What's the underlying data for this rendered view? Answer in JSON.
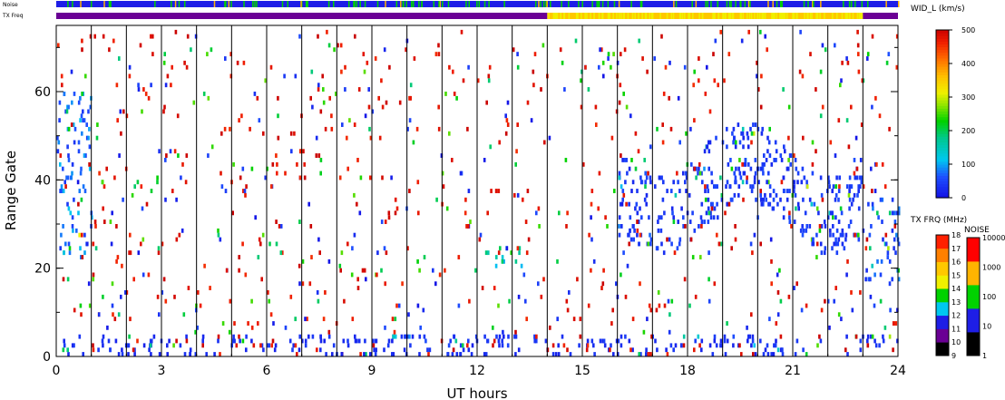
{
  "strip_labels": {
    "noise": "Noise",
    "tx_freq": "TX Freq"
  },
  "colorbars": {
    "width": {
      "title": "WID_L (km/s)",
      "ticks": [
        "0",
        "100",
        "200",
        "300",
        "400",
        "500"
      ]
    },
    "tx_freq": {
      "title": "TX FRQ (MHz)",
      "ticks": [
        "9",
        "10",
        "11",
        "12",
        "13",
        "14",
        "15",
        "16",
        "17",
        "18"
      ],
      "colors": [
        "#000000",
        "#6a0094",
        "#1e1ee6",
        "#00c8f0",
        "#00d200",
        "#f0f000",
        "#ffc800",
        "#ff8000",
        "#ff2000",
        "#e60000"
      ]
    },
    "noise": {
      "title": "NOISE",
      "ticks": [
        "1",
        "10",
        "100",
        "1000",
        "10000"
      ],
      "colors": [
        "#000000",
        "#1e1ee6",
        "#00d200",
        "#ffb400",
        "#ff0000"
      ]
    }
  },
  "chart_data": {
    "type": "heatmap",
    "xlabel": "UT hours",
    "ylabel": "Range Gate",
    "xlim": [
      0,
      24
    ],
    "ylim": [
      0,
      75
    ],
    "x_ticks": [
      "0",
      "3",
      "6",
      "9",
      "12",
      "15",
      "18",
      "21",
      "24"
    ],
    "y_ticks": [
      "0",
      "20",
      "40",
      "60"
    ],
    "scan_boundaries_ut": [
      1,
      2,
      3,
      4,
      5,
      6,
      7,
      8,
      9,
      10,
      11,
      12,
      13,
      14,
      15,
      16,
      17,
      18,
      19,
      20,
      21,
      22,
      23
    ],
    "color_scale": {
      "variable": "spectral width",
      "units": "km/s",
      "min": 0,
      "max": 500
    },
    "tx_freq_segments": [
      {
        "ut_start": 0,
        "ut_end": 14,
        "level": "10"
      },
      {
        "ut_start": 14,
        "ut_end": 23,
        "level": "14-15"
      },
      {
        "ut_start": 23,
        "ut_end": 24,
        "level": "10"
      }
    ],
    "scatter_regions": [
      {
        "name": "near-range band",
        "ut_start": 0,
        "ut_end": 24,
        "gate_min": 0,
        "gate_max": 5,
        "width_kms": 30
      },
      {
        "name": "early morning echoes",
        "ut_start": 0,
        "ut_end": 1,
        "gate_min": 22,
        "gate_max": 60,
        "width_kms": 80
      },
      {
        "name": "midday patch",
        "ut_start": 12.2,
        "ut_end": 13.4,
        "gate_min": 20,
        "gate_max": 25,
        "width_kms": 150
      },
      {
        "name": "afternoon-evening band",
        "ut_start": 16,
        "ut_end": 23,
        "gate_min": 25,
        "gate_max": 50,
        "width_kms": 40
      },
      {
        "name": "late evening echoes",
        "ut_start": 23,
        "ut_end": 24,
        "gate_min": 16,
        "gate_max": 36,
        "width_kms": 60
      }
    ]
  }
}
